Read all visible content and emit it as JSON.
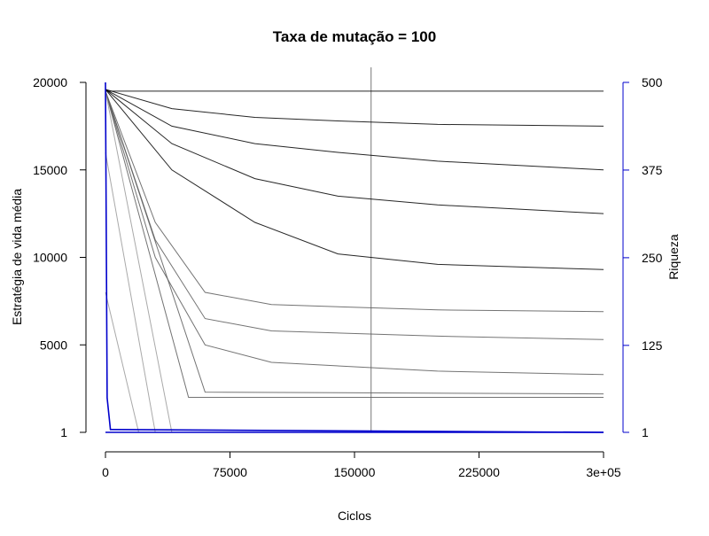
{
  "chart_data": {
    "type": "line",
    "title": "Taxa de mutação = 100",
    "xlabel": "Ciclos",
    "ylabel": "Estratégia de vida média",
    "y2label": "Riqueza",
    "xlim": [
      0,
      300000
    ],
    "ylim": [
      1,
      20000
    ],
    "y2lim": [
      1,
      500
    ],
    "x_ticks": [
      {
        "value": 0,
        "label": "0"
      },
      {
        "value": 75000,
        "label": "75000"
      },
      {
        "value": 150000,
        "label": "150000"
      },
      {
        "value": 225000,
        "label": "225000"
      },
      {
        "value": 300000,
        "label": "3e+05"
      }
    ],
    "y_ticks": [
      {
        "value": 1,
        "label": "1"
      },
      {
        "value": 5000,
        "label": "5000"
      },
      {
        "value": 10000,
        "label": "10000"
      },
      {
        "value": 15000,
        "label": "15000"
      },
      {
        "value": 20000,
        "label": "20000"
      }
    ],
    "y2_ticks": [
      {
        "value": 1,
        "label": "1"
      },
      {
        "value": 125,
        "label": "125"
      },
      {
        "value": 250,
        "label": "250"
      },
      {
        "value": 375,
        "label": "375"
      },
      {
        "value": 500,
        "label": "500"
      }
    ],
    "vline_x": 160000,
    "colors": {
      "strategy_dark": "#000000",
      "strategy_gray": "#5a5a5a",
      "strategy_light": "#9a9a9a",
      "richness": "#0000cc",
      "axis": "#000000"
    },
    "series": [
      {
        "axis": "left",
        "color": "strategy_dark",
        "x": [
          0,
          300000
        ],
        "y": [
          19500,
          19500
        ]
      },
      {
        "axis": "left",
        "color": "strategy_dark",
        "x": [
          0,
          40000,
          90000,
          140000,
          200000,
          300000
        ],
        "y": [
          19600,
          15000,
          12000,
          10200,
          9600,
          9300
        ]
      },
      {
        "axis": "left",
        "color": "strategy_dark",
        "x": [
          0,
          40000,
          90000,
          140000,
          200000,
          300000
        ],
        "y": [
          19600,
          16500,
          14500,
          13500,
          13000,
          12500
        ]
      },
      {
        "axis": "left",
        "color": "strategy_dark",
        "x": [
          0,
          40000,
          90000,
          140000,
          200000,
          300000
        ],
        "y": [
          19600,
          17500,
          16500,
          16000,
          15500,
          15000
        ]
      },
      {
        "axis": "left",
        "color": "strategy_dark",
        "x": [
          0,
          40000,
          90000,
          140000,
          200000,
          300000
        ],
        "y": [
          19600,
          18500,
          18000,
          17800,
          17600,
          17500
        ]
      },
      {
        "axis": "left",
        "color": "strategy_gray",
        "x": [
          0,
          30000,
          60000,
          100000,
          200000,
          300000
        ],
        "y": [
          19500,
          10000,
          5000,
          4000,
          3500,
          3300
        ]
      },
      {
        "axis": "left",
        "color": "strategy_gray",
        "x": [
          0,
          30000,
          60000,
          100000,
          200000,
          300000
        ],
        "y": [
          19500,
          11000,
          6500,
          5800,
          5500,
          5300
        ]
      },
      {
        "axis": "left",
        "color": "strategy_gray",
        "x": [
          0,
          30000,
          60000,
          100000,
          200000,
          300000
        ],
        "y": [
          19500,
          12000,
          8000,
          7300,
          7000,
          6900
        ]
      },
      {
        "axis": "left",
        "color": "strategy_gray",
        "x": [
          0,
          60000,
          300000
        ],
        "y": [
          19500,
          2300,
          2200
        ]
      },
      {
        "axis": "left",
        "color": "strategy_gray",
        "x": [
          0,
          50000,
          300000
        ],
        "y": [
          19500,
          2000,
          2000
        ]
      },
      {
        "axis": "left",
        "color": "strategy_light",
        "x": [
          0,
          40000,
          300000
        ],
        "y": [
          19500,
          1,
          1
        ]
      },
      {
        "axis": "left",
        "color": "strategy_light",
        "x": [
          0,
          30000,
          300000
        ],
        "y": [
          16000,
          1,
          1
        ]
      },
      {
        "axis": "left",
        "color": "strategy_light",
        "x": [
          0,
          20000,
          300000
        ],
        "y": [
          8000,
          1,
          1
        ]
      },
      {
        "axis": "right",
        "color": "richness",
        "x": [
          0,
          1000,
          3000,
          300000
        ],
        "y": [
          500,
          50,
          5,
          1
        ]
      },
      {
        "axis": "right",
        "color": "richness",
        "x": [
          0,
          300000
        ],
        "y": [
          1,
          1
        ]
      }
    ]
  }
}
